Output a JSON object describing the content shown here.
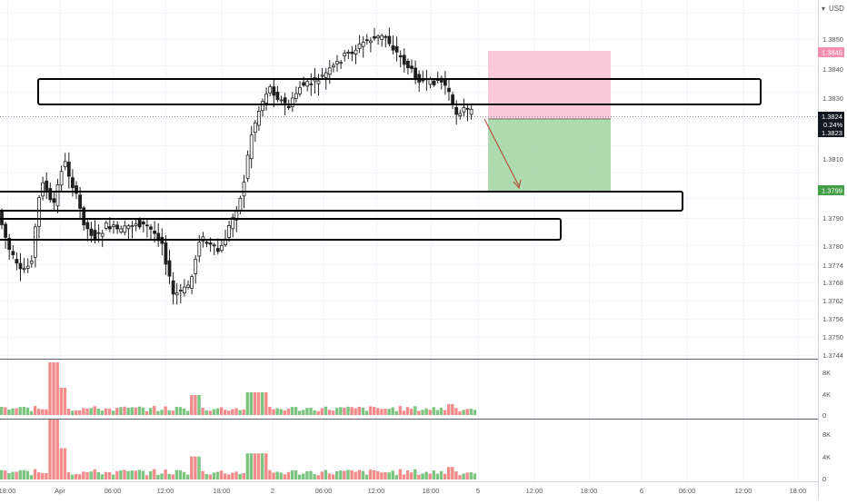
{
  "currency_label": "USD",
  "colors": {
    "up": "#4caf50",
    "down": "#1e1e1e",
    "vol_up": "#7cc47f",
    "vol_down": "#f28b8b",
    "stop_zone": "#f8bbd0",
    "target_zone": "#a5d6a7",
    "stop_tag": "#f48fb1",
    "target_tag": "#43a047",
    "price_tag": "#131722",
    "arrow": "#b5533c",
    "grid": "#f0f3fa",
    "axis_text": "#555555"
  },
  "price_axis": {
    "ticks": [
      "1.3850",
      "1.3840",
      "1.3830",
      "1.3810",
      "1.3790",
      "1.3780",
      "1.3774",
      "1.3768",
      "1.3762",
      "1.3756",
      "1.3750",
      "1.3744"
    ],
    "tags": {
      "stop": "1.3846",
      "current_price": "1.3824",
      "current_change": "0.24%",
      "current_low": "1.3823",
      "target": "1.3799"
    }
  },
  "volume_axis": {
    "panel1": [
      "8K",
      "4K",
      "0"
    ],
    "panel2": [
      "8K",
      "4K",
      "0"
    ]
  },
  "time_axis": [
    "18:00",
    "Apr",
    "06:00",
    "12:00",
    "18:00",
    "2",
    "06:00",
    "12:00",
    "18:00",
    "5",
    "12:00",
    "18:00",
    "6",
    "06:00",
    "12:00",
    "18:00"
  ],
  "chart_data": {
    "type": "candlestick",
    "symbol_currency": "USD",
    "price_range": [
      1.3744,
      1.3862
    ],
    "drawn_zones": [
      "resistance box near 1.3830",
      "support box near 1.3793",
      "support box near 1.3784"
    ],
    "trade": {
      "entry": "1.3824",
      "stop": "1.3846",
      "target": "1.3799"
    }
  }
}
